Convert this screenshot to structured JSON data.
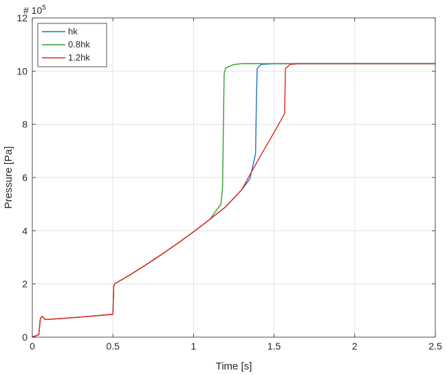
{
  "chart_data": {
    "type": "line",
    "title": "",
    "xlabel": "Time [s]",
    "ylabel": "Pressure [Pa]",
    "y_exponent_label": {
      "prefix": "# 10",
      "exponent": "5"
    },
    "xlim": [
      0,
      2.5
    ],
    "ylim": [
      0,
      12
    ],
    "xticks": [
      "0",
      "0.5",
      "1",
      "1.5",
      "2",
      "2.5"
    ],
    "yticks": [
      "0",
      "2",
      "4",
      "6",
      "8",
      "10",
      "12"
    ],
    "grid": true,
    "legend_position": "top-left",
    "series": [
      {
        "name": "hk",
        "color": "#1f6fc9",
        "points": [
          [
            0,
            0
          ],
          [
            0.02,
            0.05
          ],
          [
            0.04,
            0.1
          ],
          [
            0.05,
            0.7
          ],
          [
            0.06,
            0.78
          ],
          [
            0.07,
            0.72
          ],
          [
            0.08,
            0.66
          ],
          [
            0.2,
            0.71
          ],
          [
            0.35,
            0.78
          ],
          [
            0.5,
            0.86
          ],
          [
            0.505,
            1.9
          ],
          [
            0.51,
            2.0
          ],
          [
            0.6,
            2.32
          ],
          [
            0.7,
            2.7
          ],
          [
            0.8,
            3.1
          ],
          [
            0.9,
            3.52
          ],
          [
            1.0,
            3.96
          ],
          [
            1.1,
            4.42
          ],
          [
            1.2,
            4.9
          ],
          [
            1.3,
            5.55
          ],
          [
            1.35,
            5.95
          ],
          [
            1.385,
            6.9
          ],
          [
            1.39,
            8.9
          ],
          [
            1.395,
            10.1
          ],
          [
            1.42,
            10.25
          ],
          [
            1.5,
            10.28
          ],
          [
            2.5,
            10.28
          ]
        ]
      },
      {
        "name": "0.8hk",
        "color": "#2ea02c",
        "points": [
          [
            0,
            0
          ],
          [
            0.02,
            0.05
          ],
          [
            0.04,
            0.1
          ],
          [
            0.05,
            0.7
          ],
          [
            0.06,
            0.78
          ],
          [
            0.07,
            0.72
          ],
          [
            0.08,
            0.66
          ],
          [
            0.2,
            0.71
          ],
          [
            0.35,
            0.78
          ],
          [
            0.5,
            0.86
          ],
          [
            0.505,
            1.9
          ],
          [
            0.51,
            2.0
          ],
          [
            0.6,
            2.32
          ],
          [
            0.7,
            2.7
          ],
          [
            0.8,
            3.1
          ],
          [
            0.9,
            3.52
          ],
          [
            1.0,
            3.96
          ],
          [
            1.1,
            4.42
          ],
          [
            1.17,
            5.0
          ],
          [
            1.18,
            5.6
          ],
          [
            1.19,
            9.9
          ],
          [
            1.2,
            10.12
          ],
          [
            1.25,
            10.25
          ],
          [
            1.3,
            10.28
          ],
          [
            2.5,
            10.28
          ]
        ]
      },
      {
        "name": "1.2hk",
        "color": "#e8201c",
        "points": [
          [
            0,
            0
          ],
          [
            0.02,
            0.05
          ],
          [
            0.04,
            0.1
          ],
          [
            0.05,
            0.7
          ],
          [
            0.06,
            0.78
          ],
          [
            0.07,
            0.72
          ],
          [
            0.08,
            0.66
          ],
          [
            0.2,
            0.71
          ],
          [
            0.35,
            0.78
          ],
          [
            0.5,
            0.86
          ],
          [
            0.505,
            1.9
          ],
          [
            0.51,
            2.0
          ],
          [
            0.6,
            2.32
          ],
          [
            0.7,
            2.7
          ],
          [
            0.8,
            3.1
          ],
          [
            0.9,
            3.52
          ],
          [
            1.0,
            3.96
          ],
          [
            1.1,
            4.42
          ],
          [
            1.2,
            4.9
          ],
          [
            1.3,
            5.55
          ],
          [
            1.4,
            6.65
          ],
          [
            1.5,
            7.7
          ],
          [
            1.565,
            8.4
          ],
          [
            1.57,
            10.1
          ],
          [
            1.6,
            10.25
          ],
          [
            1.65,
            10.28
          ],
          [
            2.5,
            10.28
          ]
        ]
      }
    ]
  }
}
